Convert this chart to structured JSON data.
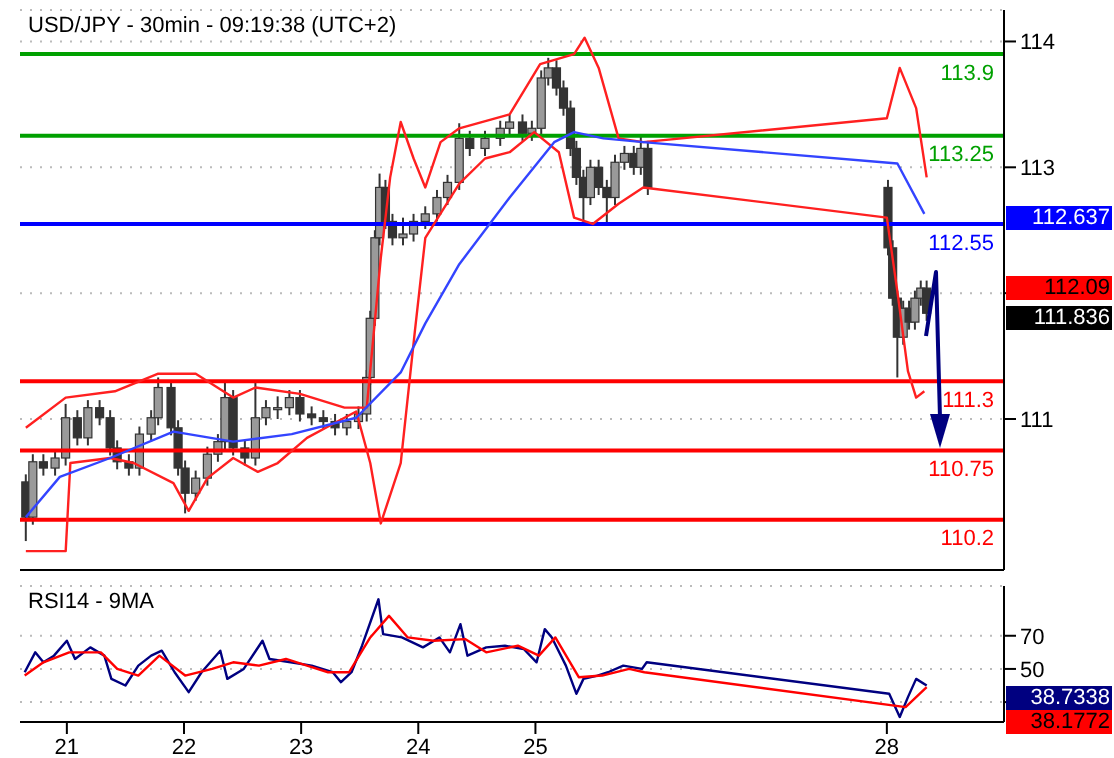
{
  "chart_data": [
    {
      "type": "candlestick",
      "title": "USD/JPY - 30min - 09:19:38 (UTC+2)",
      "color": "#333333",
      "x": [
        20.65,
        20.71,
        20.8,
        20.9,
        20.99,
        21.09,
        21.18,
        21.28,
        21.37,
        21.43,
        21.53,
        21.62,
        21.72,
        21.78,
        21.89,
        21.95,
        22.01,
        22.1,
        22.2,
        22.29,
        22.35,
        22.42,
        22.52,
        22.61,
        22.7,
        22.8,
        22.9,
        22.99,
        23.09,
        23.19,
        23.29,
        23.39,
        23.49,
        23.56,
        23.59,
        23.63,
        23.67,
        23.72,
        23.78,
        23.87,
        23.96,
        24.06,
        24.16,
        24.25,
        24.35,
        24.44,
        24.57,
        24.7,
        24.78,
        24.89,
        24.97,
        25.05,
        25.11,
        25.18,
        25.24,
        25.3,
        25.35,
        25.41,
        25.47,
        25.54,
        25.61,
        25.68,
        25.76,
        25.84,
        25.9,
        25.96,
        28.01,
        28.05,
        28.09,
        28.14,
        28.19,
        28.24,
        28.29,
        28.34
      ],
      "ohlc": [
        [
          110.5,
          110.56,
          110.03,
          110.22
        ],
        [
          110.22,
          110.72,
          110.16,
          110.66
        ],
        [
          110.66,
          110.72,
          110.55,
          110.61
        ],
        [
          110.61,
          110.75,
          110.55,
          110.69
        ],
        [
          110.69,
          111.12,
          110.63,
          111.01
        ],
        [
          111.01,
          111.07,
          110.79,
          110.85
        ],
        [
          110.85,
          111.15,
          110.79,
          111.09
        ],
        [
          111.09,
          111.15,
          110.95,
          111.01
        ],
        [
          111.01,
          111.07,
          110.71,
          110.77
        ],
        [
          110.77,
          110.83,
          110.6,
          110.66
        ],
        [
          110.66,
          110.72,
          110.55,
          110.61
        ],
        [
          110.61,
          110.94,
          110.55,
          110.88
        ],
        [
          110.88,
          111.07,
          110.82,
          111.01
        ],
        [
          111.01,
          111.33,
          110.95,
          111.25
        ],
        [
          111.25,
          111.31,
          110.87,
          110.93
        ],
        [
          110.93,
          110.99,
          110.55,
          110.61
        ],
        [
          110.61,
          110.67,
          110.25,
          110.41
        ],
        [
          110.41,
          110.59,
          110.35,
          110.53
        ],
        [
          110.53,
          110.78,
          110.47,
          110.72
        ],
        [
          110.72,
          110.88,
          110.66,
          110.82
        ],
        [
          110.82,
          111.3,
          110.76,
          111.17
        ],
        [
          111.17,
          111.23,
          110.71,
          110.77
        ],
        [
          110.77,
          110.83,
          110.63,
          110.69
        ],
        [
          110.69,
          111.3,
          110.63,
          111.01
        ],
        [
          111.01,
          111.15,
          110.95,
          111.09
        ],
        [
          111.09,
          111.18,
          111.0,
          111.09
        ],
        [
          111.09,
          111.23,
          111.03,
          111.17
        ],
        [
          111.17,
          111.23,
          110.98,
          111.04
        ],
        [
          111.04,
          111.1,
          110.95,
          111.01
        ],
        [
          111.01,
          111.07,
          110.92,
          110.98
        ],
        [
          110.98,
          111.04,
          110.87,
          110.93
        ],
        [
          110.93,
          111.04,
          110.87,
          110.98
        ],
        [
          110.98,
          111.1,
          110.92,
          111.04
        ],
        [
          111.04,
          111.39,
          110.98,
          111.33
        ],
        [
          111.33,
          111.86,
          111.27,
          111.8
        ],
        [
          111.8,
          112.5,
          111.74,
          112.44
        ],
        [
          112.44,
          112.95,
          112.38,
          112.84
        ],
        [
          112.84,
          112.9,
          112.51,
          112.57
        ],
        [
          112.57,
          112.63,
          112.38,
          112.44
        ],
        [
          112.44,
          112.6,
          112.38,
          112.47
        ],
        [
          112.47,
          112.63,
          112.41,
          112.57
        ],
        [
          112.57,
          112.69,
          112.51,
          112.63
        ],
        [
          112.63,
          112.82,
          112.57,
          112.76
        ],
        [
          112.76,
          112.94,
          112.7,
          112.88
        ],
        [
          112.88,
          113.35,
          112.82,
          113.23
        ],
        [
          113.23,
          113.29,
          113.09,
          113.15
        ],
        [
          113.15,
          113.29,
          113.09,
          113.23
        ],
        [
          113.23,
          113.37,
          113.17,
          113.31
        ],
        [
          113.31,
          113.42,
          113.25,
          113.36
        ],
        [
          113.36,
          113.42,
          113.21,
          113.27
        ],
        [
          113.27,
          113.37,
          113.21,
          113.31
        ],
        [
          113.31,
          113.77,
          113.25,
          113.71
        ],
        [
          113.71,
          113.87,
          113.65,
          113.79
        ],
        [
          113.79,
          113.85,
          113.57,
          113.63
        ],
        [
          113.63,
          113.69,
          113.41,
          113.47
        ],
        [
          113.47,
          113.53,
          113.09,
          113.15
        ],
        [
          113.15,
          113.21,
          112.86,
          112.92
        ],
        [
          112.92,
          112.98,
          112.55,
          112.76
        ],
        [
          112.76,
          113.06,
          112.7,
          113.0
        ],
        [
          113.0,
          113.06,
          112.78,
          112.84
        ],
        [
          112.84,
          112.9,
          112.55,
          112.76
        ],
        [
          112.76,
          113.1,
          112.7,
          113.04
        ],
        [
          113.04,
          113.17,
          112.98,
          113.11
        ],
        [
          113.11,
          113.17,
          112.94,
          113.0
        ],
        [
          113.0,
          113.25,
          112.94,
          113.15
        ],
        [
          113.15,
          113.21,
          112.78,
          112.84
        ],
        [
          112.84,
          112.9,
          112.3,
          112.36
        ],
        [
          112.36,
          112.42,
          111.9,
          111.96
        ],
        [
          111.96,
          112.02,
          111.33,
          111.65
        ],
        [
          111.65,
          111.94,
          111.59,
          111.88
        ],
        [
          111.88,
          111.94,
          111.71,
          111.77
        ],
        [
          111.77,
          112.02,
          111.71,
          111.96
        ],
        [
          111.96,
          112.1,
          111.9,
          112.04
        ],
        [
          112.04,
          112.1,
          111.78,
          111.84
        ]
      ],
      "series": [
        {
          "type": "line",
          "color": "#ff2020",
          "x": [
            20.65,
            20.99,
            21.41,
            21.78,
            22.1,
            22.42,
            22.61,
            22.99,
            23.37,
            23.56,
            23.68,
            23.76,
            23.85,
            23.96,
            24.06,
            24.19,
            24.35,
            24.78,
            25.04,
            25.33,
            25.42,
            25.54,
            25.71,
            25.92,
            28.0,
            28.11,
            28.25,
            28.34
          ],
          "values": [
            110.93,
            111.17,
            111.22,
            111.36,
            111.36,
            111.17,
            111.25,
            111.2,
            111.09,
            111.09,
            112.28,
            112.92,
            113.36,
            113.07,
            112.84,
            113.2,
            113.31,
            113.42,
            113.82,
            113.9,
            114.03,
            113.79,
            113.23,
            113.2,
            113.39,
            113.79,
            113.47,
            112.92
          ]
        },
        {
          "type": "line",
          "color": "#ff2020",
          "x": [
            20.65,
            20.99,
            21.03,
            21.37,
            21.57,
            21.91,
            22.04,
            22.2,
            22.42,
            22.63,
            22.8,
            23.05,
            23.27,
            23.47,
            23.59,
            23.68,
            23.85,
            23.97,
            24.06,
            24.35,
            24.57,
            24.78,
            24.99,
            25.2,
            25.33,
            25.49,
            25.71,
            25.92,
            28.0,
            28.09,
            28.18,
            28.25,
            28.32
          ],
          "values": [
            109.95,
            109.95,
            110.65,
            110.69,
            110.65,
            110.49,
            110.27,
            110.53,
            110.69,
            110.58,
            110.65,
            110.85,
            110.96,
            111.06,
            110.65,
            110.17,
            110.65,
            111.69,
            112.44,
            112.87,
            113.07,
            113.12,
            113.28,
            113.12,
            112.6,
            112.55,
            112.71,
            112.84,
            112.6,
            112.01,
            111.38,
            111.17,
            111.22
          ]
        },
        {
          "type": "line",
          "color": "#3344ff",
          "x": [
            20.65,
            20.94,
            21.37,
            21.91,
            22.42,
            22.92,
            23.47,
            23.85,
            24.06,
            24.35,
            24.78,
            25.16,
            25.33,
            25.58,
            25.92,
            28.09,
            28.32
          ],
          "values": [
            110.22,
            110.54,
            110.69,
            110.9,
            110.82,
            110.88,
            111.01,
            111.37,
            111.76,
            112.23,
            112.76,
            113.2,
            113.28,
            113.23,
            113.2,
            113.03,
            112.63
          ]
        }
      ],
      "xlim": [
        20.6,
        29.0
      ],
      "xticks": [
        21,
        22,
        23,
        24,
        25,
        28
      ],
      "ylim": [
        109.8,
        114.25
      ],
      "yticks": [
        111,
        {
          "value": 112,
          "label": null
        },
        113,
        114
      ],
      "tick_labels": "y",
      "grid": "y",
      "ref_lines": [
        {
          "axis": "y",
          "value": 113.9,
          "label": "113.9",
          "color": "#00a000"
        },
        {
          "axis": "y",
          "value": 113.25,
          "label": "113.25",
          "color": "#00a000"
        },
        {
          "axis": "y",
          "value": 112.55,
          "label": "112.55",
          "color": "#0000ff"
        },
        {
          "axis": "y",
          "value": 111.3,
          "label": "111.3",
          "color": "#ff0000"
        },
        {
          "axis": "y",
          "value": 110.75,
          "label": "110.75",
          "color": "#ff0000"
        },
        {
          "axis": "y",
          "value": 110.2,
          "label": "110.2",
          "color": "#ff0000"
        }
      ],
      "annotations": [
        "112.637",
        "112.09",
        "111.836"
      ]
    },
    {
      "type": "line",
      "title": "RSI14 - 9MA",
      "series": [
        {
          "color": "#000080",
          "x": [
            20.64,
            20.73,
            20.8,
            20.89,
            21,
            21.07,
            21.2,
            21.32,
            21.38,
            21.5,
            21.61,
            21.72,
            21.81,
            21.92,
            22.04,
            22.15,
            22.31,
            22.37,
            22.51,
            22.67,
            22.73,
            22.91,
            23.09,
            23.27,
            23.34,
            23.43,
            23.52,
            23.66,
            23.7,
            23.86,
            24.04,
            24.18,
            24.27,
            24.36,
            24.42,
            24.58,
            24.74,
            24.9,
            25.01,
            25.08,
            25.14,
            25.26,
            25.35,
            25.41,
            25.53,
            25.62,
            25.75,
            25.91,
            25.95,
            28.02,
            28.11,
            28.18,
            28.25,
            28.34
          ],
          "values": [
            48,
            60,
            54,
            58,
            67,
            56,
            63,
            58,
            44,
            40,
            52,
            58,
            61,
            48,
            36,
            48,
            61,
            44,
            50,
            67,
            56,
            54,
            52,
            48,
            42,
            48,
            64,
            92,
            71,
            69,
            63,
            69,
            60,
            77,
            58,
            63,
            64,
            62,
            54,
            74,
            69,
            52,
            35,
            44,
            46,
            48,
            52,
            50,
            54,
            35,
            21,
            33,
            44,
            40
          ]
        },
        {
          "color": "#ff0000",
          "x": [
            20.64,
            20.8,
            21.02,
            21.29,
            21.43,
            21.61,
            21.79,
            22.01,
            22.24,
            22.42,
            22.64,
            22.87,
            23.05,
            23.23,
            23.41,
            23.59,
            23.75,
            23.91,
            24.13,
            24.4,
            24.58,
            24.85,
            25.03,
            25.17,
            25.37,
            25.57,
            25.8,
            25.93,
            28.16,
            28.34
          ],
          "values": [
            46,
            54,
            60,
            60,
            50,
            46,
            58,
            46,
            50,
            54,
            52,
            56,
            52,
            48,
            48,
            69,
            82,
            69,
            67,
            68,
            60,
            64,
            58,
            69,
            45,
            46,
            50,
            48,
            27,
            39
          ]
        }
      ],
      "xlim": [
        20.6,
        29.0
      ],
      "xticks": [
        21,
        22,
        23,
        24,
        25,
        28
      ],
      "ylim": [
        18,
        100
      ],
      "yticks": [
        {
          "value": 30,
          "label": null
        },
        50,
        70
      ],
      "grid": "y",
      "annotations": [
        "38.7338",
        "38.1772"
      ]
    }
  ]
}
